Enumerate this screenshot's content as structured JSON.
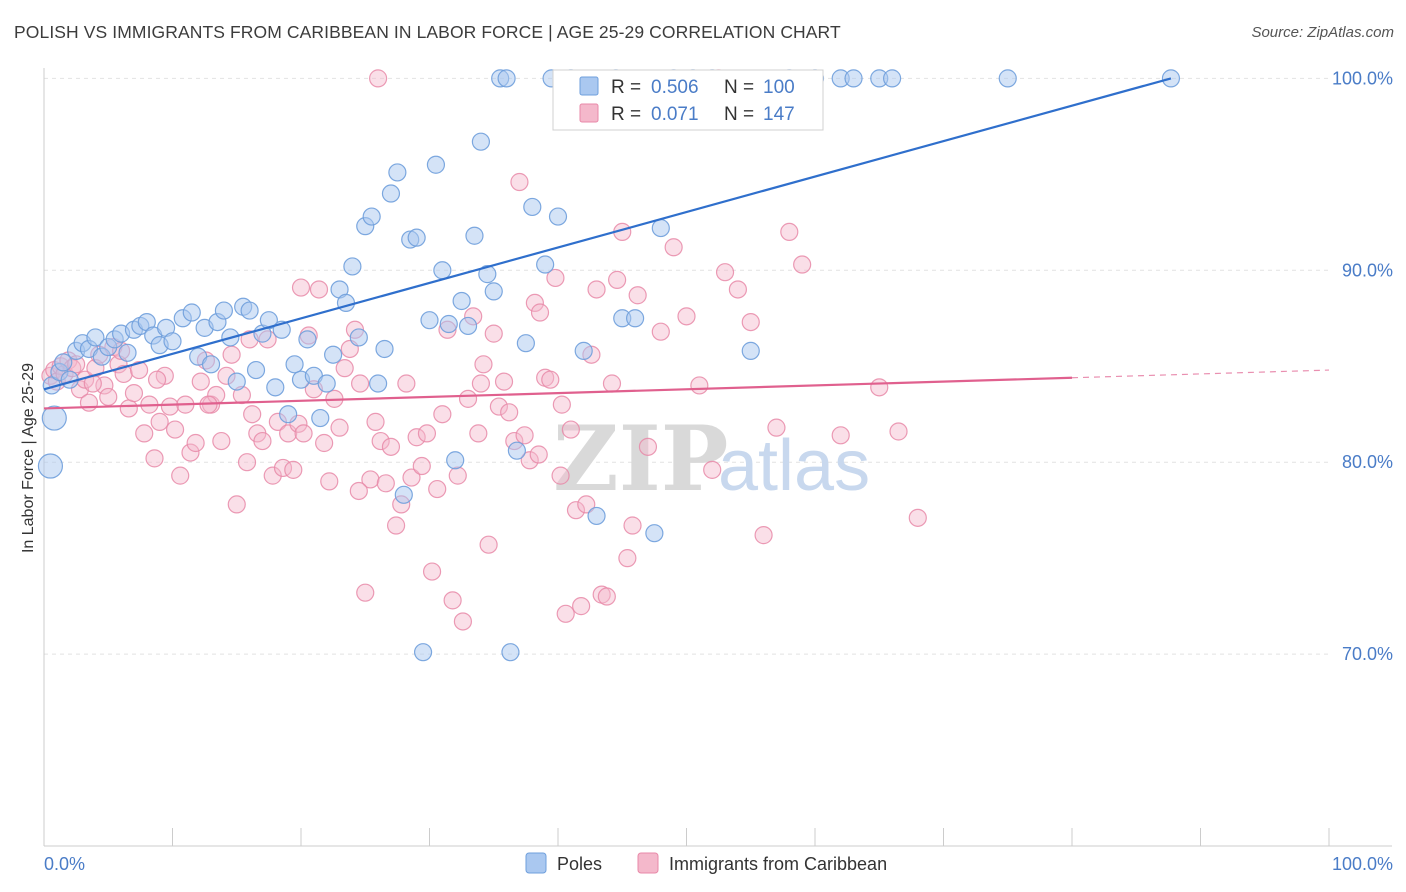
{
  "header": {
    "title": "POLISH VS IMMIGRANTS FROM CARIBBEAN IN LABOR FORCE | AGE 25-29 CORRELATION CHART",
    "source": "Source: ZipAtlas.com"
  },
  "watermark": {
    "zip": "ZIP",
    "atlas": "atlas"
  },
  "colors": {
    "poles_fill": "#aac8f0",
    "poles_stroke": "#6f9fdc",
    "poles_line": "#2f6fcc",
    "carib_fill": "#f4b8cb",
    "carib_stroke": "#e889a8",
    "carib_line": "#e0608e",
    "tick_text": "#4a7cc7"
  },
  "legend": {
    "rows": [
      {
        "r_label": "R =",
        "r_value": "0.506",
        "n_label": "N =",
        "n_value": "100"
      },
      {
        "r_label": "R =",
        "r_value": "0.071",
        "n_label": "N =",
        "n_value": "147"
      }
    ]
  },
  "chart_data": {
    "type": "scatter",
    "title": "POLISH VS IMMIGRANTS FROM CARIBBEAN IN LABOR FORCE | AGE 25-29 CORRELATION CHART",
    "ylabel": "In Labor Force | Age 25-29",
    "xlabel": "",
    "xlim": [
      0,
      100
    ],
    "ylim": [
      60,
      102
    ],
    "x_tick_labels": [
      "0.0%",
      "100.0%"
    ],
    "y_ticks": [
      70,
      80,
      90,
      100
    ],
    "y_tick_labels": [
      "70.0%",
      "80.0%",
      "90.0%",
      "100.0%"
    ],
    "grid": true,
    "legend_position": "top-center",
    "series": [
      {
        "name": "Poles",
        "trend": {
          "x": [
            0,
            87.7
          ],
          "y": [
            83.8,
            100.0
          ]
        },
        "points": [
          [
            0.5,
            79.8
          ],
          [
            0.8,
            82.3
          ],
          [
            0.6,
            84.0
          ],
          [
            1.2,
            84.7
          ],
          [
            1.5,
            85.2
          ],
          [
            2.0,
            84.3
          ],
          [
            2.5,
            85.8
          ],
          [
            3.0,
            86.2
          ],
          [
            3.5,
            85.9
          ],
          [
            4.0,
            86.5
          ],
          [
            4.5,
            85.5
          ],
          [
            5.0,
            86.0
          ],
          [
            5.5,
            86.4
          ],
          [
            6.0,
            86.7
          ],
          [
            6.5,
            85.7
          ],
          [
            7.0,
            86.9
          ],
          [
            7.5,
            87.1
          ],
          [
            8.0,
            87.3
          ],
          [
            8.5,
            86.6
          ],
          [
            9.0,
            86.1
          ],
          [
            9.5,
            87.0
          ],
          [
            10.0,
            86.3
          ],
          [
            10.8,
            87.5
          ],
          [
            11.5,
            87.8
          ],
          [
            12.0,
            85.5
          ],
          [
            12.5,
            87.0
          ],
          [
            13.0,
            85.1
          ],
          [
            13.5,
            87.3
          ],
          [
            14.0,
            87.9
          ],
          [
            14.5,
            86.5
          ],
          [
            15.0,
            84.2
          ],
          [
            15.5,
            88.1
          ],
          [
            16.0,
            87.9
          ],
          [
            16.5,
            84.8
          ],
          [
            17.0,
            86.7
          ],
          [
            17.5,
            87.4
          ],
          [
            18.0,
            83.9
          ],
          [
            18.5,
            86.9
          ],
          [
            19.0,
            82.5
          ],
          [
            19.5,
            85.1
          ],
          [
            20.0,
            84.3
          ],
          [
            20.5,
            86.4
          ],
          [
            21.0,
            84.5
          ],
          [
            21.5,
            82.3
          ],
          [
            22.0,
            84.1
          ],
          [
            22.5,
            85.6
          ],
          [
            23.0,
            89.0
          ],
          [
            23.5,
            88.3
          ],
          [
            24.0,
            90.2
          ],
          [
            24.5,
            86.5
          ],
          [
            25.0,
            92.3
          ],
          [
            25.5,
            92.8
          ],
          [
            26.0,
            84.1
          ],
          [
            26.5,
            85.9
          ],
          [
            27.0,
            94.0
          ],
          [
            27.5,
            95.1
          ],
          [
            28.0,
            78.3
          ],
          [
            28.5,
            91.6
          ],
          [
            29.0,
            91.7
          ],
          [
            29.5,
            70.1
          ],
          [
            30.0,
            87.4
          ],
          [
            30.5,
            95.5
          ],
          [
            31.0,
            90.0
          ],
          [
            31.5,
            87.2
          ],
          [
            32.0,
            80.1
          ],
          [
            32.5,
            88.4
          ],
          [
            33.0,
            87.1
          ],
          [
            33.5,
            91.8
          ],
          [
            34.0,
            96.7
          ],
          [
            34.5,
            89.8
          ],
          [
            35.0,
            88.9
          ],
          [
            35.5,
            100.0
          ],
          [
            36.0,
            100.0
          ],
          [
            36.3,
            70.1
          ],
          [
            36.8,
            80.6
          ],
          [
            37.5,
            86.2
          ],
          [
            38.0,
            93.3
          ],
          [
            39.0,
            90.3
          ],
          [
            39.5,
            100.0
          ],
          [
            40.0,
            92.8
          ],
          [
            41.0,
            100.0
          ],
          [
            42.0,
            85.8
          ],
          [
            43.0,
            77.2
          ],
          [
            44.5,
            100.0
          ],
          [
            45.0,
            87.5
          ],
          [
            46.0,
            87.5
          ],
          [
            47.5,
            76.3
          ],
          [
            48.0,
            92.2
          ],
          [
            49.0,
            100.0
          ],
          [
            50.5,
            100.0
          ],
          [
            52.0,
            100.0
          ],
          [
            55.0,
            85.8
          ],
          [
            58.0,
            100.0
          ],
          [
            60.0,
            100.0
          ],
          [
            62.0,
            100.0
          ],
          [
            63.0,
            100.0
          ],
          [
            65.0,
            100.0
          ],
          [
            66.0,
            100.0
          ],
          [
            75.0,
            100.0
          ],
          [
            87.7,
            100.0
          ]
        ]
      },
      {
        "name": "Immigrants from Caribbean",
        "trend": {
          "x": [
            0,
            80.0
          ],
          "y": [
            82.8,
            84.4
          ]
        },
        "points": [
          [
            0.5,
            84.5
          ],
          [
            0.8,
            84.8
          ],
          [
            1.0,
            84.2
          ],
          [
            1.3,
            85.0
          ],
          [
            1.6,
            84.6
          ],
          [
            1.9,
            85.3
          ],
          [
            2.2,
            84.9
          ],
          [
            2.5,
            85.1
          ],
          [
            2.8,
            83.8
          ],
          [
            3.2,
            84.3
          ],
          [
            3.5,
            83.1
          ],
          [
            4.0,
            84.9
          ],
          [
            4.3,
            85.6
          ],
          [
            4.7,
            84.0
          ],
          [
            5.0,
            83.4
          ],
          [
            5.4,
            86.0
          ],
          [
            5.8,
            85.1
          ],
          [
            6.2,
            84.6
          ],
          [
            6.6,
            82.8
          ],
          [
            7.0,
            83.6
          ],
          [
            7.4,
            84.8
          ],
          [
            7.8,
            81.5
          ],
          [
            8.2,
            83.0
          ],
          [
            8.6,
            80.2
          ],
          [
            9.0,
            82.1
          ],
          [
            9.4,
            84.5
          ],
          [
            9.8,
            82.9
          ],
          [
            10.2,
            81.7
          ],
          [
            10.6,
            79.3
          ],
          [
            11.0,
            83.0
          ],
          [
            11.4,
            80.5
          ],
          [
            11.8,
            81.0
          ],
          [
            12.2,
            84.2
          ],
          [
            12.6,
            85.3
          ],
          [
            13.0,
            83.0
          ],
          [
            13.4,
            83.5
          ],
          [
            13.8,
            81.1
          ],
          [
            14.2,
            84.5
          ],
          [
            14.6,
            85.6
          ],
          [
            15.0,
            77.8
          ],
          [
            15.4,
            83.5
          ],
          [
            15.8,
            80.0
          ],
          [
            16.2,
            82.5
          ],
          [
            16.6,
            81.5
          ],
          [
            17.0,
            81.1
          ],
          [
            17.4,
            86.4
          ],
          [
            17.8,
            79.3
          ],
          [
            18.2,
            82.1
          ],
          [
            18.6,
            79.7
          ],
          [
            19.0,
            81.5
          ],
          [
            19.4,
            79.6
          ],
          [
            19.8,
            82.0
          ],
          [
            20.2,
            81.5
          ],
          [
            20.6,
            86.6
          ],
          [
            21.0,
            83.8
          ],
          [
            21.4,
            89.0
          ],
          [
            21.8,
            81.0
          ],
          [
            22.2,
            79.0
          ],
          [
            22.6,
            83.3
          ],
          [
            23.0,
            81.8
          ],
          [
            23.4,
            84.9
          ],
          [
            23.8,
            85.9
          ],
          [
            24.2,
            86.9
          ],
          [
            24.6,
            84.1
          ],
          [
            25.0,
            73.2
          ],
          [
            25.4,
            79.1
          ],
          [
            25.8,
            82.1
          ],
          [
            26.2,
            81.1
          ],
          [
            26.6,
            78.9
          ],
          [
            27.0,
            80.8
          ],
          [
            27.4,
            76.7
          ],
          [
            27.8,
            77.8
          ],
          [
            28.2,
            84.1
          ],
          [
            28.6,
            79.2
          ],
          [
            29.0,
            81.3
          ],
          [
            29.4,
            79.8
          ],
          [
            29.8,
            81.5
          ],
          [
            30.2,
            74.3
          ],
          [
            30.6,
            78.6
          ],
          [
            31.0,
            82.5
          ],
          [
            31.4,
            86.9
          ],
          [
            31.8,
            72.8
          ],
          [
            32.2,
            79.3
          ],
          [
            32.6,
            71.7
          ],
          [
            33.0,
            83.3
          ],
          [
            33.4,
            87.6
          ],
          [
            33.8,
            81.5
          ],
          [
            34.2,
            85.1
          ],
          [
            34.6,
            75.7
          ],
          [
            35.0,
            86.7
          ],
          [
            35.4,
            82.9
          ],
          [
            35.8,
            84.2
          ],
          [
            36.2,
            82.6
          ],
          [
            36.6,
            81.1
          ],
          [
            37.0,
            94.6
          ],
          [
            37.4,
            81.4
          ],
          [
            37.8,
            80.1
          ],
          [
            38.2,
            88.3
          ],
          [
            38.6,
            87.8
          ],
          [
            39.0,
            84.4
          ],
          [
            39.4,
            84.3
          ],
          [
            39.8,
            89.6
          ],
          [
            40.2,
            79.3
          ],
          [
            40.6,
            72.1
          ],
          [
            41.0,
            81.7
          ],
          [
            41.4,
            77.5
          ],
          [
            41.8,
            72.5
          ],
          [
            42.2,
            77.8
          ],
          [
            42.6,
            85.6
          ],
          [
            43.0,
            89.0
          ],
          [
            43.4,
            73.1
          ],
          [
            43.8,
            73.0
          ],
          [
            44.2,
            84.1
          ],
          [
            44.6,
            89.5
          ],
          [
            45.0,
            92.0
          ],
          [
            45.4,
            75.0
          ],
          [
            45.8,
            76.7
          ],
          [
            46.2,
            88.7
          ],
          [
            47.0,
            80.8
          ],
          [
            48.0,
            86.8
          ],
          [
            49.0,
            91.2
          ],
          [
            50.0,
            87.6
          ],
          [
            51.0,
            84.0
          ],
          [
            52.0,
            79.6
          ],
          [
            53.0,
            89.9
          ],
          [
            54.0,
            89.0
          ],
          [
            55.0,
            87.3
          ],
          [
            56.0,
            76.2
          ],
          [
            57.0,
            81.8
          ],
          [
            58.0,
            92.0
          ],
          [
            59.0,
            90.3
          ],
          [
            62.0,
            81.4
          ],
          [
            65.0,
            83.9
          ],
          [
            66.5,
            81.6
          ],
          [
            68.0,
            77.1
          ],
          [
            12.8,
            83.0
          ],
          [
            16.0,
            86.4
          ],
          [
            20.0,
            89.1
          ],
          [
            24.5,
            78.5
          ],
          [
            26.0,
            100.0
          ],
          [
            34.0,
            84.1
          ],
          [
            38.5,
            80.4
          ],
          [
            40.3,
            83.0
          ],
          [
            52.5,
            100.0
          ],
          [
            3.8,
            84.1
          ],
          [
            6.0,
            85.8
          ],
          [
            8.8,
            84.3
          ]
        ]
      }
    ]
  },
  "bottom_legend": {
    "items": [
      "Poles",
      "Immigrants from Caribbean"
    ]
  }
}
